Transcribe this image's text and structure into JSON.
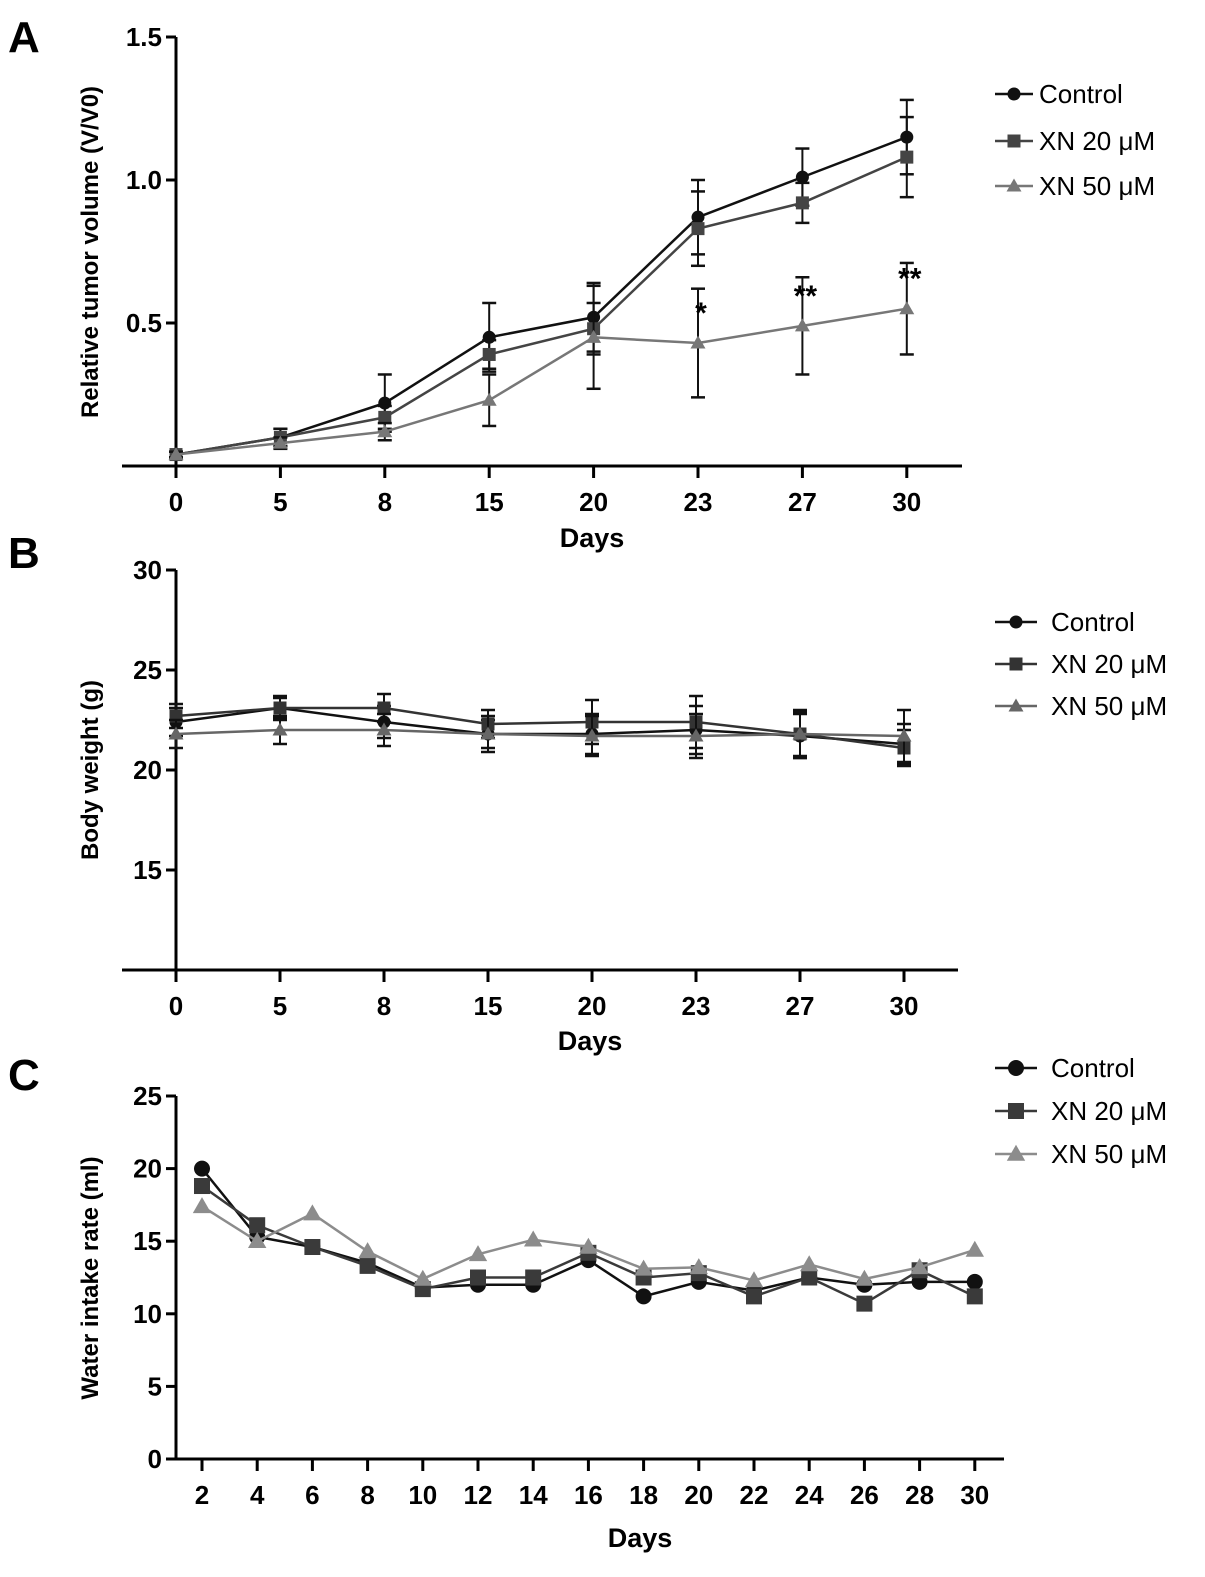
{
  "chart_data": [
    {
      "panel": "A",
      "type": "line",
      "xlabel": "Days",
      "ylabel": "Relative tumor volume (V/V0)",
      "categories": [
        "0",
        "5",
        "8",
        "15",
        "20",
        "23",
        "27",
        "30"
      ],
      "yticks": [
        "0.5",
        "1.0",
        "1.5"
      ],
      "ylim": [
        0,
        1.5
      ],
      "grid": false,
      "legend": "right",
      "series": [
        {
          "name": "Control",
          "marker": "circle",
          "color": "#111111",
          "values": [
            0.04,
            0.1,
            0.22,
            0.45,
            0.52,
            0.87,
            1.01,
            1.15
          ],
          "errors": [
            0.01,
            0.03,
            0.1,
            0.12,
            0.12,
            0.13,
            0.1,
            0.13
          ]
        },
        {
          "name": "XN 20 μM",
          "marker": "square",
          "color": "#444444",
          "values": [
            0.04,
            0.1,
            0.17,
            0.39,
            0.48,
            0.83,
            0.92,
            1.08
          ],
          "errors": [
            0.01,
            0.03,
            0.04,
            0.05,
            0.09,
            0.13,
            0.07,
            0.14
          ]
        },
        {
          "name": "XN 50 μM",
          "marker": "triangle",
          "color": "#777777",
          "values": [
            0.04,
            0.08,
            0.12,
            0.23,
            0.45,
            0.43,
            0.49,
            0.55
          ],
          "errors": [
            0.01,
            0.02,
            0.03,
            0.09,
            0.18,
            0.19,
            0.17,
            0.16
          ]
        }
      ],
      "annotations": [
        {
          "category": "23",
          "text": "*"
        },
        {
          "category": "27",
          "text": "**"
        },
        {
          "category": "30",
          "text": "**"
        }
      ]
    },
    {
      "panel": "B",
      "type": "line",
      "xlabel": "Days",
      "ylabel": "Body weight (g)",
      "categories": [
        "0",
        "5",
        "8",
        "15",
        "20",
        "23",
        "27",
        "30"
      ],
      "yticks": [
        "15",
        "20",
        "25",
        "30"
      ],
      "ylim": [
        10,
        30
      ],
      "grid": false,
      "legend": "right",
      "series": [
        {
          "name": "Control",
          "marker": "circle",
          "color": "#111111",
          "values": [
            22.4,
            23.1,
            22.4,
            21.8,
            21.8,
            22.0,
            21.7,
            21.3
          ],
          "errors": [
            0.7,
            0.5,
            0.8,
            0.7,
            1.0,
            1.2,
            1.1,
            1.0
          ]
        },
        {
          "name": "XN 20 μM",
          "marker": "square",
          "color": "#333333",
          "values": [
            22.7,
            23.1,
            23.1,
            22.3,
            22.4,
            22.4,
            21.8,
            21.1
          ],
          "errors": [
            0.6,
            0.6,
            0.7,
            0.7,
            1.1,
            1.3,
            1.2,
            0.9
          ]
        },
        {
          "name": "XN 50 μM",
          "marker": "triangle",
          "color": "#666666",
          "values": [
            21.8,
            22.0,
            22.0,
            21.8,
            21.7,
            21.7,
            21.8,
            21.7
          ],
          "errors": [
            0.7,
            0.7,
            0.8,
            0.9,
            1.0,
            1.1,
            1.1,
            1.3
          ]
        }
      ]
    },
    {
      "panel": "C",
      "type": "line",
      "xlabel": "Days",
      "ylabel": "Water intake rate (ml)",
      "categories": [
        "2",
        "4",
        "6",
        "8",
        "10",
        "12",
        "14",
        "16",
        "18",
        "20",
        "22",
        "24",
        "26",
        "28",
        "30"
      ],
      "yticks": [
        "0",
        "5",
        "10",
        "15",
        "20",
        "25"
      ],
      "ylim": [
        0,
        25
      ],
      "grid": false,
      "legend": "right",
      "series": [
        {
          "name": "Control",
          "marker": "circle",
          "color": "#111111",
          "values": [
            20.0,
            15.3,
            14.6,
            13.5,
            11.8,
            12.0,
            12.0,
            13.7,
            11.2,
            12.2,
            11.6,
            12.5,
            12.0,
            12.2,
            12.2
          ]
        },
        {
          "name": "XN 20 μM",
          "marker": "square",
          "color": "#3a3a3a",
          "values": [
            18.8,
            16.1,
            14.6,
            13.3,
            11.7,
            12.5,
            12.5,
            14.2,
            12.5,
            12.8,
            11.2,
            12.5,
            10.7,
            13.0,
            11.2
          ]
        },
        {
          "name": "XN 50 μM",
          "marker": "triangle",
          "color": "#8c8c8c",
          "values": [
            17.4,
            15.0,
            16.9,
            14.3,
            12.4,
            14.1,
            15.1,
            14.6,
            13.1,
            13.2,
            12.3,
            13.4,
            12.4,
            13.2,
            14.4
          ]
        }
      ]
    }
  ]
}
